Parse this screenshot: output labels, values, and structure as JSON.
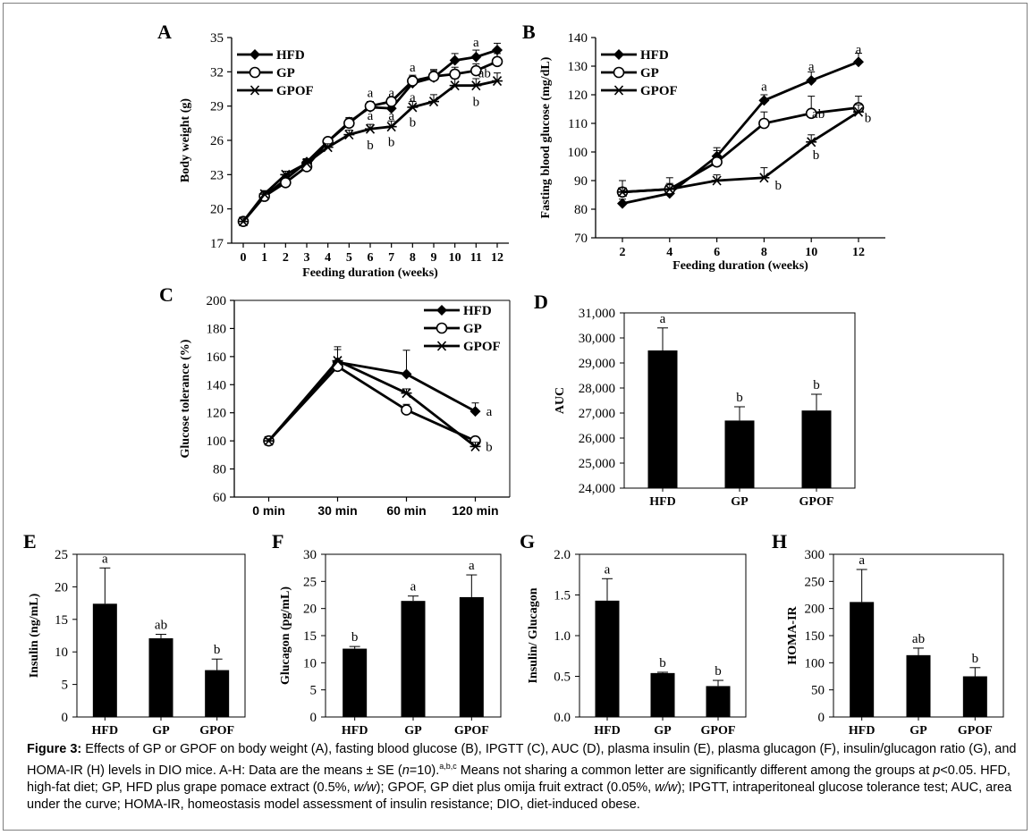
{
  "panel_labels": [
    "A",
    "B",
    "C",
    "D",
    "E",
    "F",
    "G",
    "H"
  ],
  "legend_names": [
    "HFD",
    "GP",
    "GPOF"
  ],
  "chart_data": [
    {
      "panel": "A",
      "type": "line",
      "xlabel": "Feeding duration (weeks)",
      "ylabel": "Body weight (g)",
      "x": [
        0,
        1,
        2,
        3,
        4,
        5,
        6,
        7,
        8,
        9,
        10,
        11,
        12
      ],
      "x_tick_labels": [
        "0",
        "1",
        "2",
        "3",
        "4",
        "5",
        "6",
        "7",
        "8",
        "9",
        "10",
        "11",
        "12"
      ],
      "y_ticks": [
        17,
        20,
        23,
        26,
        29,
        32,
        35
      ],
      "ylim": [
        17,
        35
      ],
      "legend": "top-left",
      "series": [
        {
          "name": "HFD",
          "marker": "diamond",
          "values": [
            18.9,
            21.1,
            22.6,
            24.1,
            25.9,
            27.6,
            28.9,
            28.8,
            31.0,
            31.5,
            33.0,
            33.3,
            33.9
          ],
          "err": [
            0.3,
            0.3,
            0.3,
            0.3,
            0.3,
            0.4,
            0.5,
            0.5,
            0.6,
            0.6,
            0.6,
            0.6,
            0.6
          ]
        },
        {
          "name": "GP",
          "marker": "circle",
          "values": [
            18.9,
            21.1,
            22.3,
            23.7,
            25.9,
            27.5,
            29.0,
            29.4,
            31.2,
            31.6,
            31.8,
            32.1,
            32.9
          ],
          "err": [
            0.3,
            0.3,
            0.3,
            0.3,
            0.3,
            0.4,
            0.4,
            0.4,
            0.5,
            0.6,
            0.6,
            0.6,
            0.7
          ]
        },
        {
          "name": "GPOF",
          "marker": "star",
          "values": [
            18.9,
            21.3,
            23.0,
            24.0,
            25.4,
            26.5,
            27.0,
            27.2,
            28.9,
            29.4,
            30.8,
            30.8,
            31.2
          ],
          "err": [
            0.3,
            0.3,
            0.3,
            0.3,
            0.3,
            0.4,
            0.4,
            0.5,
            0.5,
            0.6,
            0.6,
            0.6,
            0.7
          ]
        }
      ],
      "annotations": [
        {
          "text": "a",
          "x": 6,
          "y": 30.2
        },
        {
          "text": "a",
          "x": 7,
          "y": 30.2
        },
        {
          "text": "a",
          "x": 6,
          "y": 28.2
        },
        {
          "text": "a",
          "x": 7,
          "y": 28.2
        },
        {
          "text": "b",
          "x": 6,
          "y": 25.6
        },
        {
          "text": "b",
          "x": 7,
          "y": 25.9
        },
        {
          "text": "a",
          "x": 8,
          "y": 32.4
        },
        {
          "text": "a",
          "x": 8,
          "y": 29.8
        },
        {
          "text": "b",
          "x": 8,
          "y": 27.6
        },
        {
          "text": "a",
          "x": 11,
          "y": 34.6
        },
        {
          "text": "ab",
          "x": 11.4,
          "y": 31.9
        },
        {
          "text": "b",
          "x": 11,
          "y": 29.4
        }
      ]
    },
    {
      "panel": "B",
      "type": "line",
      "xlabel": "Feeding duration (weeks)",
      "ylabel": "Fasting blood glucose (mg/dL)",
      "x": [
        2,
        4,
        6,
        8,
        10,
        12
      ],
      "x_tick_labels": [
        "2",
        "4",
        "6",
        "8",
        "10",
        "12"
      ],
      "y_ticks": [
        70,
        80,
        90,
        100,
        110,
        120,
        130,
        140
      ],
      "ylim": [
        70,
        140
      ],
      "legend": "top-left",
      "series": [
        {
          "name": "HFD",
          "marker": "diamond",
          "values": [
            82,
            85.5,
            98.5,
            118,
            125,
            131.5
          ],
          "err": [
            1.5,
            1.5,
            3,
            2,
            3,
            3
          ]
        },
        {
          "name": "GP",
          "marker": "circle",
          "values": [
            86,
            87,
            96.5,
            110,
            113.5,
            115.5
          ],
          "err": [
            4,
            4,
            4,
            4,
            6,
            4
          ]
        },
        {
          "name": "GPOF",
          "marker": "star",
          "values": [
            86,
            87,
            90,
            91,
            103.5,
            114
          ],
          "err": [
            1.5,
            2,
            2,
            3.5,
            2.5,
            2.5
          ]
        }
      ],
      "annotations": [
        {
          "text": "a",
          "x": 8,
          "y": 123
        },
        {
          "text": "a",
          "x": 10,
          "y": 130
        },
        {
          "text": "a",
          "x": 12,
          "y": 136
        },
        {
          "text": "ab",
          "x": 10.3,
          "y": 113.5
        },
        {
          "text": "b",
          "x": 12.4,
          "y": 112
        },
        {
          "text": "b",
          "x": 8.6,
          "y": 88.5
        },
        {
          "text": "b",
          "x": 10.2,
          "y": 99
        }
      ]
    },
    {
      "panel": "C",
      "type": "line",
      "ylabel": "Glucose tolerance (%)",
      "categories": [
        "0 min",
        "30 min",
        "60 min",
        "120 min"
      ],
      "y_ticks": [
        60,
        80,
        100,
        120,
        140,
        160,
        180,
        200
      ],
      "ylim": [
        60,
        200
      ],
      "legend": "top-right",
      "series": [
        {
          "name": "HFD",
          "marker": "diamond",
          "values": [
            100,
            156,
            147.5,
            121
          ],
          "err": [
            1.5,
            11,
            17,
            6
          ]
        },
        {
          "name": "GP",
          "marker": "circle",
          "values": [
            100,
            153,
            122,
            100
          ],
          "err": [
            1.5,
            4,
            4,
            2
          ]
        },
        {
          "name": "GPOF",
          "marker": "star",
          "values": [
            100,
            157,
            134,
            96
          ],
          "err": [
            1.5,
            8,
            3,
            3
          ]
        }
      ],
      "annotations": [
        {
          "text": "a",
          "x": 3.2,
          "y": 121
        },
        {
          "text": "b",
          "x": 3.2,
          "y": 96
        }
      ]
    },
    {
      "panel": "D",
      "type": "bar",
      "ylabel": "AUC",
      "categories": [
        "HFD",
        "GP",
        "GPOF"
      ],
      "values": [
        29500,
        26700,
        27100
      ],
      "err": [
        900,
        550,
        650
      ],
      "letters": [
        "a",
        "b",
        "b"
      ],
      "y_ticks": [
        24000,
        25000,
        26000,
        27000,
        28000,
        29000,
        30000,
        31000
      ],
      "y_tick_labels": [
        "24,000",
        "25,000",
        "26,000",
        "27,000",
        "28,000",
        "29,000",
        "30,000",
        "31,000"
      ],
      "ylim": [
        24000,
        31000
      ]
    },
    {
      "panel": "E",
      "type": "bar",
      "ylabel": "Insulin (ng/mL)",
      "categories": [
        "HFD",
        "GP",
        "GPOF"
      ],
      "values": [
        17.4,
        12.1,
        7.2
      ],
      "err": [
        5.5,
        0.6,
        1.7
      ],
      "letters": [
        "a",
        "ab",
        "b"
      ],
      "y_ticks": [
        0,
        5,
        10,
        15,
        20,
        25
      ],
      "y_tick_labels": [
        "0",
        "5",
        "10",
        "15",
        "20",
        "25"
      ],
      "ylim": [
        0,
        25
      ]
    },
    {
      "panel": "F",
      "type": "bar",
      "ylabel": "Glucagon (pg/mL)",
      "categories": [
        "HFD",
        "GP",
        "GPOF"
      ],
      "values": [
        12.6,
        21.4,
        22.1
      ],
      "err": [
        0.4,
        0.9,
        4.1
      ],
      "letters": [
        "b",
        "a",
        "a"
      ],
      "y_ticks": [
        0,
        5,
        10,
        15,
        20,
        25,
        30
      ],
      "y_tick_labels": [
        "0",
        "5",
        "10",
        "15",
        "20",
        "25",
        "30"
      ],
      "ylim": [
        0,
        30
      ]
    },
    {
      "panel": "G",
      "type": "bar",
      "ylabel": "Insulin/ Glucagon",
      "categories": [
        "HFD",
        "GP",
        "GPOF"
      ],
      "values": [
        1.43,
        0.54,
        0.38
      ],
      "err": [
        0.27,
        0.01,
        0.07
      ],
      "letters": [
        "a",
        "b",
        "b"
      ],
      "y_ticks": [
        0,
        0.5,
        1,
        1.5,
        2
      ],
      "y_tick_labels": [
        "0.0",
        "0.5",
        "1.0",
        "1.5",
        "2.0"
      ],
      "ylim": [
        0,
        2
      ]
    },
    {
      "panel": "H",
      "type": "bar",
      "ylabel": "HOMA-IR",
      "categories": [
        "HFD",
        "GP",
        "GPOF"
      ],
      "values": [
        212,
        114,
        75
      ],
      "err": [
        60,
        13,
        16
      ],
      "letters": [
        "a",
        "ab",
        "b"
      ],
      "y_ticks": [
        0,
        50,
        100,
        150,
        200,
        250,
        300
      ],
      "y_tick_labels": [
        "0",
        "50",
        "100",
        "150",
        "200",
        "250",
        "300"
      ],
      "ylim": [
        0,
        300
      ]
    }
  ],
  "caption": {
    "label": "Figure 3:",
    "parts": [
      {
        "t": " Effects of GP or GPOF on body weight (A), fasting blood glucose (B), IPGTT (C), AUC (D), plasma insulin (E), plasma glucagon (F), insulin/glucagon ratio (G), and HOMA-IR (H) levels in DIO mice. A-H: Data are the means ± SE ("
      },
      {
        "t": "n",
        "i": true
      },
      {
        "t": "=10)."
      },
      {
        "t": "a,b,c",
        "sup": true
      },
      {
        "t": " Means not sharing a common letter are significantly different among the groups at "
      },
      {
        "t": "p",
        "i": true
      },
      {
        "t": "<0.05. HFD, high-fat diet; GP, HFD plus grape pomace extract (0.5%, "
      },
      {
        "t": "w/w",
        "i": true
      },
      {
        "t": "); GPOF, GP diet plus omija fruit extract (0.05%, "
      },
      {
        "t": "w/w",
        "i": true
      },
      {
        "t": "); IPGTT, intraperitoneal glucose tolerance test; AUC, area under the curve; HOMA-IR, homeostasis model assessment of insulin resistance; DIO, diet-induced obese."
      }
    ]
  }
}
